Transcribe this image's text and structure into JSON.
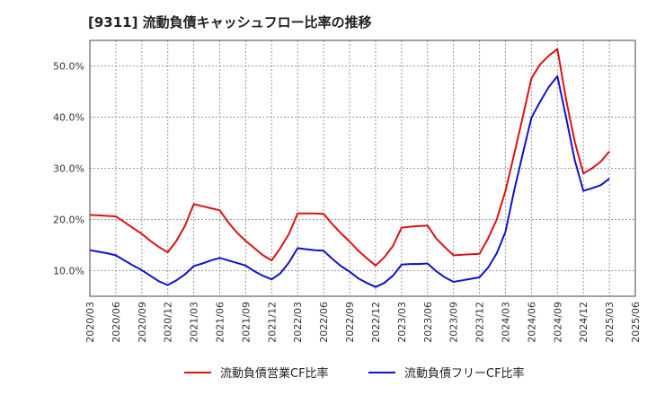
{
  "title": "[9311]  流動負債キャッシュフロー比率の推移",
  "chart_data": {
    "type": "line",
    "title": "[9311]  流動負債キャッシュフロー比率の推移",
    "xlabel": "",
    "ylabel": "",
    "ylim": [
      5,
      55
    ],
    "yticks": [
      "10.0%",
      "20.0%",
      "30.0%",
      "40.0%",
      "50.0%"
    ],
    "ytick_values": [
      10,
      20,
      30,
      40,
      50
    ],
    "grid": true,
    "legend_position": "bottom",
    "categories": [
      "2020/03",
      "2020/06",
      "2020/09",
      "2020/12",
      "2021/03",
      "2021/06",
      "2021/09",
      "2021/12",
      "2022/03",
      "2022/06",
      "2022/09",
      "2022/12",
      "2023/03",
      "2023/06",
      "2023/09",
      "2023/12",
      "2024/03",
      "2024/06",
      "2024/09",
      "2024/12",
      "2025/03",
      "2025/06"
    ],
    "x": [
      "2020/03",
      "2020/04",
      "2020/05",
      "2020/06",
      "2020/07",
      "2020/08",
      "2020/09",
      "2020/10",
      "2020/11",
      "2020/12",
      "2021/01",
      "2021/02",
      "2021/03",
      "2021/04",
      "2021/05",
      "2021/06",
      "2021/07",
      "2021/08",
      "2021/09",
      "2021/10",
      "2021/11",
      "2021/12",
      "2022/01",
      "2022/02",
      "2022/03",
      "2022/04",
      "2022/05",
      "2022/06",
      "2022/07",
      "2022/08",
      "2022/09",
      "2022/10",
      "2022/11",
      "2022/12",
      "2023/01",
      "2023/02",
      "2023/03",
      "2023/04",
      "2023/05",
      "2023/06",
      "2023/07",
      "2023/08",
      "2023/09",
      "2023/10",
      "2023/11",
      "2023/12",
      "2024/01",
      "2024/02",
      "2024/03",
      "2024/04",
      "2024/05",
      "2024/06",
      "2024/07",
      "2024/08",
      "2024/09",
      "2024/10",
      "2024/11",
      "2024/12",
      "2025/01",
      "2025/02",
      "2025/03"
    ],
    "series": [
      {
        "name": "流動負債営業CF比率",
        "color": "#dd1111",
        "values": [
          20.9,
          20.8,
          20.7,
          20.6,
          19.5,
          18.3,
          17.2,
          15.8,
          14.6,
          13.6,
          15.8,
          18.8,
          23.0,
          22.6,
          22.2,
          21.8,
          19.4,
          17.4,
          15.8,
          14.4,
          13.0,
          12.0,
          14.4,
          17.2,
          21.2,
          21.2,
          21.2,
          21.1,
          19.1,
          17.3,
          15.7,
          13.9,
          12.4,
          11.0,
          12.6,
          14.8,
          18.4,
          18.6,
          18.7,
          18.8,
          16.3,
          14.6,
          13.0,
          13.1,
          13.2,
          13.3,
          16.3,
          20.0,
          25.6,
          32.7,
          40.0,
          47.6,
          50.3,
          52.0,
          53.3,
          43.5,
          35.2,
          29.0,
          30.0,
          31.3,
          33.3
        ]
      },
      {
        "name": "流動負債フリーCF比率",
        "color": "#1111cc",
        "values": [
          14.0,
          13.7,
          13.4,
          13.0,
          12.0,
          11.0,
          10.1,
          9.0,
          7.9,
          7.2,
          8.1,
          9.3,
          10.9,
          11.4,
          12.0,
          12.5,
          12.0,
          11.5,
          11.0,
          9.9,
          9.0,
          8.3,
          9.5,
          11.6,
          14.4,
          14.2,
          14.0,
          13.9,
          12.3,
          10.9,
          9.8,
          8.5,
          7.6,
          6.8,
          7.6,
          9.0,
          11.2,
          11.3,
          11.3,
          11.4,
          9.9,
          8.7,
          7.8,
          8.1,
          8.4,
          8.7,
          10.6,
          13.4,
          17.6,
          25.6,
          32.8,
          39.9,
          43.0,
          45.9,
          48.0,
          40.0,
          31.6,
          25.6,
          26.1,
          26.7,
          28.0
        ]
      }
    ]
  }
}
